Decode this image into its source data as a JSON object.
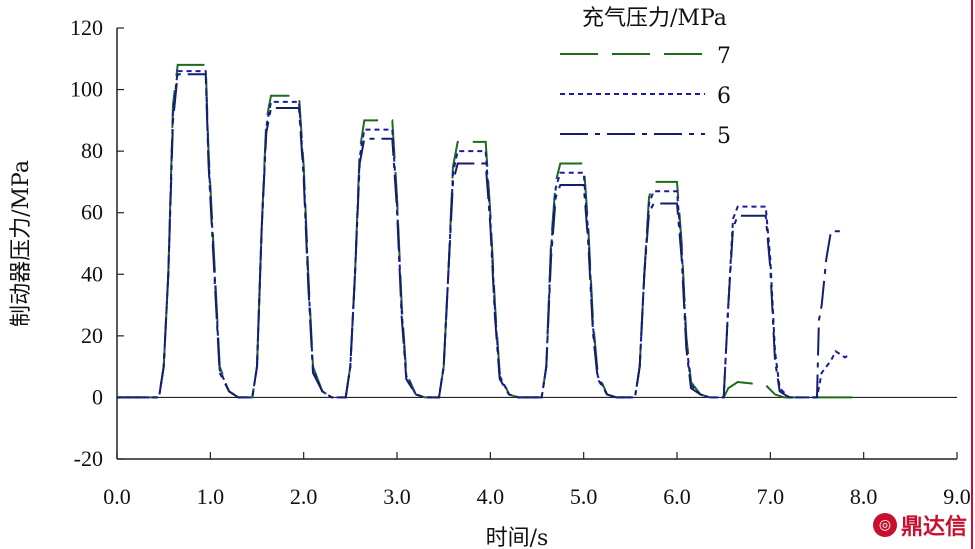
{
  "colors": {
    "axis": "#222222",
    "series_7": "#1e6b1e",
    "series_6": "#1a1aa8",
    "series_5": "#141e6e",
    "watermark": "#c8102e"
  },
  "watermark": {
    "text": "鼎达信"
  },
  "chart_data": {
    "type": "line",
    "title": "",
    "xlabel": "时间/s",
    "ylabel": "制动器压力/MPa",
    "xlim": [
      0,
      9
    ],
    "ylim": [
      -20,
      120
    ],
    "xticks": [
      "0.0",
      "1.0",
      "2.0",
      "3.0",
      "4.0",
      "5.0",
      "6.0",
      "7.0",
      "8.0",
      "9.0"
    ],
    "yticks": [
      "-20",
      "0",
      "20",
      "40",
      "60",
      "80",
      "100",
      "120"
    ],
    "xtick_values": [
      0,
      1,
      2,
      3,
      4,
      5,
      6,
      7,
      8,
      9
    ],
    "ytick_values": [
      -20,
      0,
      20,
      40,
      60,
      80,
      100,
      120
    ],
    "grid": false,
    "legend": {
      "title": "充气压力/MPa",
      "position": "top-right"
    },
    "series": [
      {
        "name": "7",
        "style": "long-dash",
        "points": [
          [
            0,
            0
          ],
          [
            0.45,
            0
          ],
          [
            0.5,
            10
          ],
          [
            0.55,
            40
          ],
          [
            0.6,
            95
          ],
          [
            0.65,
            108
          ],
          [
            0.95,
            108
          ],
          [
            0.98,
            80
          ],
          [
            1.05,
            40
          ],
          [
            1.1,
            10
          ],
          [
            1.2,
            2
          ],
          [
            1.3,
            0
          ],
          [
            1.45,
            0
          ],
          [
            1.5,
            10
          ],
          [
            1.55,
            55
          ],
          [
            1.6,
            90
          ],
          [
            1.65,
            98
          ],
          [
            1.95,
            98
          ],
          [
            2.0,
            75
          ],
          [
            2.05,
            40
          ],
          [
            2.1,
            10
          ],
          [
            2.2,
            2
          ],
          [
            2.3,
            0
          ],
          [
            2.45,
            0
          ],
          [
            2.5,
            10
          ],
          [
            2.55,
            40
          ],
          [
            2.6,
            80
          ],
          [
            2.65,
            90
          ],
          [
            2.95,
            90
          ],
          [
            3.0,
            65
          ],
          [
            3.05,
            30
          ],
          [
            3.1,
            8
          ],
          [
            3.2,
            1
          ],
          [
            3.3,
            0
          ],
          [
            3.45,
            0
          ],
          [
            3.5,
            10
          ],
          [
            3.55,
            40
          ],
          [
            3.6,
            75
          ],
          [
            3.65,
            83
          ],
          [
            3.95,
            83
          ],
          [
            4.0,
            60
          ],
          [
            4.05,
            30
          ],
          [
            4.1,
            8
          ],
          [
            4.2,
            1
          ],
          [
            4.3,
            0
          ],
          [
            4.55,
            0
          ],
          [
            4.6,
            10
          ],
          [
            4.65,
            50
          ],
          [
            4.7,
            70
          ],
          [
            4.75,
            76
          ],
          [
            5.0,
            76
          ],
          [
            5.05,
            55
          ],
          [
            5.1,
            25
          ],
          [
            5.15,
            8
          ],
          [
            5.25,
            1
          ],
          [
            5.35,
            0
          ],
          [
            5.55,
            0
          ],
          [
            5.6,
            10
          ],
          [
            5.65,
            40
          ],
          [
            5.7,
            65
          ],
          [
            5.75,
            70
          ],
          [
            6.0,
            70
          ],
          [
            6.05,
            50
          ],
          [
            6.1,
            20
          ],
          [
            6.15,
            5
          ],
          [
            6.25,
            1
          ],
          [
            6.35,
            0
          ],
          [
            6.5,
            0
          ],
          [
            6.55,
            3
          ],
          [
            6.65,
            5
          ],
          [
            6.95,
            4
          ],
          [
            7.05,
            1
          ],
          [
            7.15,
            0
          ],
          [
            7.5,
            0
          ],
          [
            8.0,
            0
          ]
        ]
      },
      {
        "name": "6",
        "style": "dotted",
        "points": [
          [
            0,
            0
          ],
          [
            0.45,
            0
          ],
          [
            0.5,
            10
          ],
          [
            0.55,
            40
          ],
          [
            0.6,
            93
          ],
          [
            0.65,
            106
          ],
          [
            0.95,
            106
          ],
          [
            0.98,
            78
          ],
          [
            1.05,
            38
          ],
          [
            1.1,
            9
          ],
          [
            1.2,
            2
          ],
          [
            1.3,
            0
          ],
          [
            1.45,
            0
          ],
          [
            1.5,
            10
          ],
          [
            1.55,
            55
          ],
          [
            1.6,
            88
          ],
          [
            1.65,
            96
          ],
          [
            1.95,
            96
          ],
          [
            2.0,
            73
          ],
          [
            2.05,
            38
          ],
          [
            2.1,
            9
          ],
          [
            2.2,
            2
          ],
          [
            2.3,
            0
          ],
          [
            2.45,
            0
          ],
          [
            2.5,
            10
          ],
          [
            2.55,
            40
          ],
          [
            2.6,
            78
          ],
          [
            2.65,
            87
          ],
          [
            2.95,
            87
          ],
          [
            3.0,
            63
          ],
          [
            3.05,
            28
          ],
          [
            3.1,
            7
          ],
          [
            3.2,
            1
          ],
          [
            3.3,
            0
          ],
          [
            3.45,
            0
          ],
          [
            3.5,
            10
          ],
          [
            3.55,
            40
          ],
          [
            3.6,
            73
          ],
          [
            3.65,
            80
          ],
          [
            3.95,
            80
          ],
          [
            4.0,
            58
          ],
          [
            4.05,
            28
          ],
          [
            4.1,
            7
          ],
          [
            4.2,
            1
          ],
          [
            4.3,
            0
          ],
          [
            4.55,
            0
          ],
          [
            4.6,
            10
          ],
          [
            4.65,
            48
          ],
          [
            4.7,
            68
          ],
          [
            4.75,
            73
          ],
          [
            5.0,
            73
          ],
          [
            5.05,
            53
          ],
          [
            5.1,
            23
          ],
          [
            5.15,
            7
          ],
          [
            5.25,
            1
          ],
          [
            5.35,
            0
          ],
          [
            5.55,
            0
          ],
          [
            5.6,
            10
          ],
          [
            5.65,
            40
          ],
          [
            5.7,
            63
          ],
          [
            5.75,
            67
          ],
          [
            6.0,
            67
          ],
          [
            6.05,
            48
          ],
          [
            6.1,
            18
          ],
          [
            6.15,
            4
          ],
          [
            6.25,
            1
          ],
          [
            6.35,
            0
          ],
          [
            6.5,
            0
          ],
          [
            6.55,
            30
          ],
          [
            6.6,
            58
          ],
          [
            6.65,
            62
          ],
          [
            6.95,
            62
          ],
          [
            7.0,
            45
          ],
          [
            7.05,
            15
          ],
          [
            7.1,
            3
          ],
          [
            7.2,
            0
          ],
          [
            7.5,
            0
          ],
          [
            7.55,
            8
          ],
          [
            7.65,
            12
          ],
          [
            7.7,
            15
          ],
          [
            7.8,
            13
          ],
          [
            7.85,
            14
          ]
        ]
      },
      {
        "name": "5",
        "style": "dash-dot",
        "points": [
          [
            0,
            0
          ],
          [
            0.45,
            0
          ],
          [
            0.5,
            10
          ],
          [
            0.55,
            40
          ],
          [
            0.6,
            90
          ],
          [
            0.65,
            105
          ],
          [
            0.95,
            105
          ],
          [
            0.98,
            76
          ],
          [
            1.05,
            36
          ],
          [
            1.1,
            8
          ],
          [
            1.2,
            2
          ],
          [
            1.3,
            0
          ],
          [
            1.45,
            0
          ],
          [
            1.5,
            10
          ],
          [
            1.55,
            55
          ],
          [
            1.6,
            86
          ],
          [
            1.65,
            94
          ],
          [
            1.95,
            94
          ],
          [
            2.0,
            71
          ],
          [
            2.05,
            36
          ],
          [
            2.1,
            8
          ],
          [
            2.2,
            2
          ],
          [
            2.3,
            0
          ],
          [
            2.45,
            0
          ],
          [
            2.5,
            10
          ],
          [
            2.55,
            40
          ],
          [
            2.6,
            76
          ],
          [
            2.65,
            84
          ],
          [
            2.95,
            84
          ],
          [
            3.0,
            61
          ],
          [
            3.05,
            26
          ],
          [
            3.1,
            6
          ],
          [
            3.2,
            1
          ],
          [
            3.3,
            0
          ],
          [
            3.45,
            0
          ],
          [
            3.5,
            10
          ],
          [
            3.55,
            40
          ],
          [
            3.6,
            70
          ],
          [
            3.65,
            76
          ],
          [
            3.95,
            76
          ],
          [
            4.0,
            56
          ],
          [
            4.05,
            26
          ],
          [
            4.1,
            6
          ],
          [
            4.2,
            1
          ],
          [
            4.3,
            0
          ],
          [
            4.55,
            0
          ],
          [
            4.6,
            10
          ],
          [
            4.65,
            45
          ],
          [
            4.7,
            65
          ],
          [
            4.75,
            69
          ],
          [
            5.0,
            69
          ],
          [
            5.05,
            50
          ],
          [
            5.1,
            21
          ],
          [
            5.15,
            6
          ],
          [
            5.25,
            1
          ],
          [
            5.35,
            0
          ],
          [
            5.55,
            0
          ],
          [
            5.6,
            10
          ],
          [
            5.65,
            40
          ],
          [
            5.7,
            60
          ],
          [
            5.75,
            63
          ],
          [
            6.0,
            63
          ],
          [
            6.05,
            45
          ],
          [
            6.1,
            16
          ],
          [
            6.15,
            3
          ],
          [
            6.25,
            1
          ],
          [
            6.35,
            0
          ],
          [
            6.5,
            0
          ],
          [
            6.55,
            30
          ],
          [
            6.6,
            55
          ],
          [
            6.65,
            59
          ],
          [
            6.95,
            59
          ],
          [
            7.0,
            42
          ],
          [
            7.05,
            12
          ],
          [
            7.1,
            2
          ],
          [
            7.2,
            0
          ],
          [
            7.5,
            0
          ],
          [
            7.52,
            25
          ],
          [
            7.55,
            30
          ],
          [
            7.6,
            45
          ],
          [
            7.65,
            54
          ],
          [
            7.8,
            54
          ]
        ]
      }
    ]
  }
}
